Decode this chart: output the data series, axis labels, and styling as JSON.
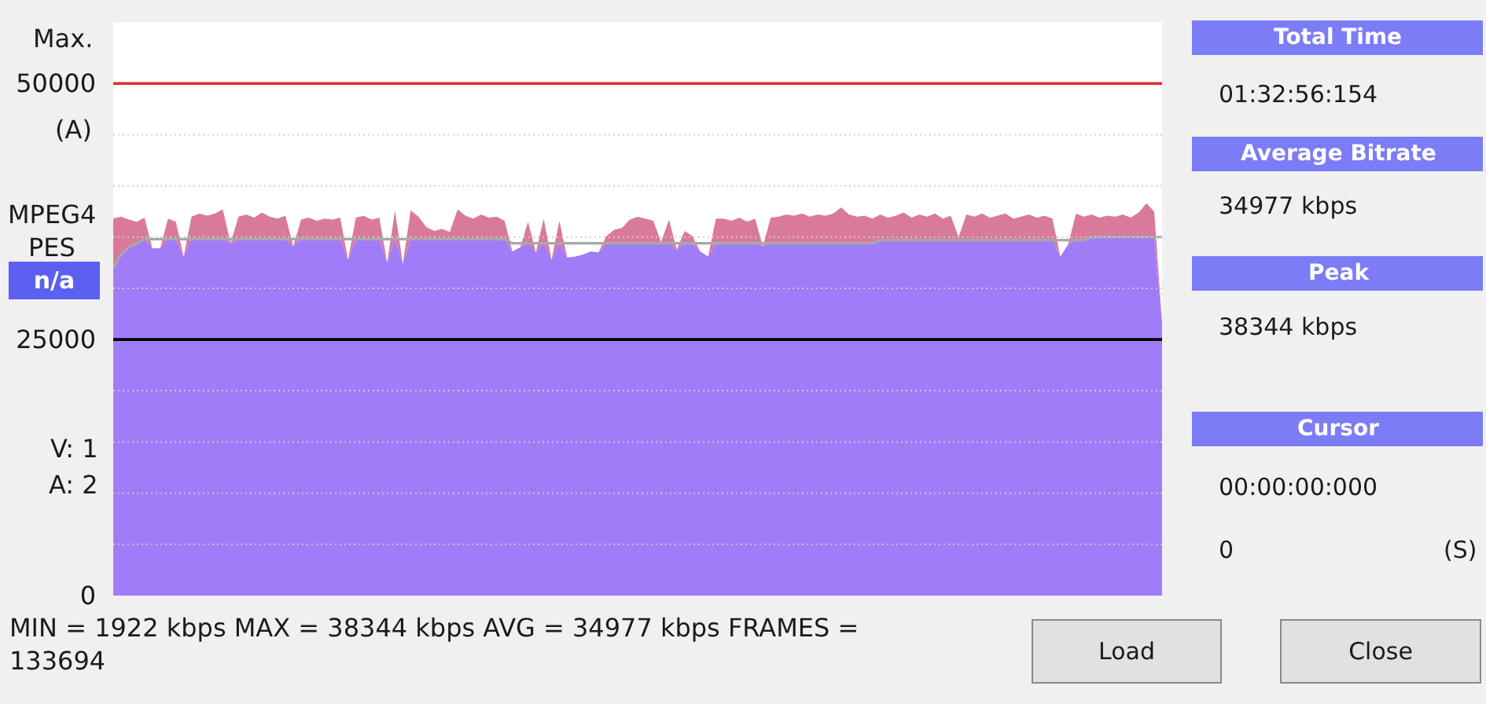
{
  "chart_data": [
    {
      "type": "area",
      "stacked": true,
      "categories": [
        null,
        null,
        null,
        null,
        null,
        null,
        null,
        null,
        null,
        null,
        null,
        null,
        null,
        null,
        null,
        null,
        null,
        null,
        null,
        null,
        null,
        null,
        null,
        null,
        null,
        null,
        null,
        null,
        null,
        null,
        null,
        null,
        null,
        null,
        null,
        null,
        null,
        null,
        null,
        null,
        null,
        null,
        null,
        null,
        null,
        null,
        null,
        null,
        null,
        null,
        null,
        null,
        null,
        null,
        null,
        null,
        null,
        null,
        null,
        null,
        null,
        null,
        null,
        null,
        null,
        null,
        null,
        null,
        null,
        null,
        null,
        null,
        null,
        null,
        null,
        null,
        null,
        null,
        null,
        null,
        null,
        null,
        null,
        null,
        null,
        null,
        null,
        null,
        null,
        null,
        null,
        null,
        null,
        null,
        null,
        null,
        null,
        null,
        null,
        null,
        null,
        null,
        null,
        null,
        null,
        null,
        null,
        null,
        null,
        null,
        null,
        null,
        null,
        null,
        null,
        null,
        null,
        null,
        null,
        null,
        null,
        null,
        null,
        null,
        null,
        null,
        null,
        null,
        null,
        null,
        null,
        null,
        null,
        null,
        null
      ],
      "series": [
        {
          "type": "area",
          "color": "#a07cf8",
          "values": [
            32000,
            33300,
            34000,
            34400,
            34800,
            33900,
            33900,
            34800,
            34800,
            33100,
            34800,
            34800,
            34800,
            34800,
            34800,
            34400,
            34800,
            34800,
            34800,
            34800,
            34800,
            34800,
            34800,
            34100,
            34800,
            34800,
            34800,
            34800,
            34800,
            34800,
            32800,
            34800,
            34800,
            34800,
            34800,
            32500,
            34800,
            32400,
            34800,
            34800,
            34800,
            34800,
            34800,
            34800,
            34800,
            34800,
            34800,
            34800,
            34800,
            34800,
            34800,
            33600,
            34000,
            34400,
            33500,
            34400,
            32800,
            34400,
            33000,
            33100,
            33300,
            33600,
            33500,
            34400,
            34400,
            34400,
            34400,
            34400,
            34400,
            34400,
            34400,
            34400,
            33800,
            34400,
            34400,
            33600,
            33100,
            34400,
            34400,
            34400,
            34400,
            34400,
            34400,
            34100,
            34400,
            34400,
            34400,
            34400,
            34400,
            34400,
            34400,
            34400,
            34400,
            34400,
            34400,
            34400,
            34400,
            34400,
            34700,
            34700,
            34700,
            34700,
            34700,
            34700,
            34700,
            34700,
            34700,
            34700,
            34700,
            34700,
            34700,
            34700,
            34700,
            34700,
            34700,
            34700,
            34700,
            34700,
            34700,
            34700,
            34700,
            33100,
            34300,
            34700,
            34700,
            35000,
            35000,
            35000,
            35000,
            35000,
            35000,
            35000,
            35000,
            35000,
            26700
          ]
        },
        {
          "type": "area",
          "color": "#d97a9c",
          "values": [
            4800,
            3700,
            2700,
            2100,
            2100,
            0,
            0,
            2000,
            1700,
            0,
            2200,
            2500,
            2300,
            2500,
            2900,
            0,
            2200,
            2400,
            2100,
            2600,
            2200,
            2000,
            2300,
            0,
            1900,
            2100,
            1800,
            2000,
            1900,
            2100,
            0,
            2100,
            2300,
            1900,
            2100,
            0,
            2800,
            0,
            2800,
            2200,
            1200,
            800,
            1000,
            700,
            2900,
            2300,
            2000,
            2400,
            2100,
            2200,
            1800,
            0,
            0,
            2100,
            0,
            2400,
            0,
            2200,
            0,
            0,
            0,
            0,
            0,
            700,
            1300,
            1500,
            2300,
            2600,
            2400,
            2200,
            100,
            2300,
            0,
            1200,
            700,
            0,
            0,
            2400,
            2400,
            2200,
            2500,
            2100,
            2400,
            0,
            2500,
            2600,
            2800,
            2700,
            2900,
            2600,
            2800,
            2700,
            2900,
            3500,
            2800,
            2600,
            2700,
            2400,
            2500,
            2200,
            2400,
            2700,
            2200,
            2500,
            2300,
            2600,
            2100,
            2400,
            300,
            2500,
            2300,
            2600,
            2200,
            2400,
            2600,
            2100,
            2300,
            2500,
            2200,
            2400,
            2100,
            0,
            0,
            2600,
            2300,
            2200,
            1900,
            2100,
            2000,
            2200,
            1900,
            2400,
            3300,
            2500,
            0
          ]
        },
        {
          "type": "line",
          "color": "#a8a8a8",
          "values": [
            32000,
            33300,
            34000,
            34400,
            34800,
            34800,
            34800,
            34800,
            34800,
            34800,
            34800,
            34800,
            34800,
            34800,
            34800,
            34800,
            34800,
            34800,
            34800,
            34800,
            34800,
            34800,
            34800,
            34800,
            34800,
            34800,
            34800,
            34800,
            34800,
            34800,
            34800,
            34800,
            34800,
            34800,
            34800,
            34800,
            34800,
            34800,
            34800,
            34800,
            34800,
            34800,
            34800,
            34800,
            34800,
            34800,
            34800,
            34800,
            34800,
            34800,
            34800,
            34400,
            34400,
            34400,
            34400,
            34400,
            34400,
            34400,
            34400,
            34400,
            34400,
            34400,
            34400,
            34400,
            34400,
            34400,
            34400,
            34400,
            34400,
            34400,
            34400,
            34400,
            34400,
            34400,
            34400,
            34400,
            34400,
            34400,
            34400,
            34400,
            34400,
            34400,
            34400,
            34400,
            34400,
            34400,
            34400,
            34400,
            34400,
            34400,
            34400,
            34400,
            34400,
            34400,
            34400,
            34400,
            34400,
            34400,
            34700,
            34700,
            34700,
            34700,
            34700,
            34700,
            34700,
            34700,
            34700,
            34700,
            34700,
            34700,
            34700,
            34700,
            34700,
            34700,
            34700,
            34700,
            34700,
            34700,
            34700,
            34700,
            34700,
            34700,
            34700,
            34700,
            34700,
            35000,
            35000,
            35000,
            35000,
            35000,
            35000,
            35000,
            35000,
            35000,
            35000
          ]
        }
      ],
      "ylim": [
        0,
        56000
      ],
      "yticks": [
        0,
        {
          "value": 5000,
          "label": null
        },
        {
          "value": 10000,
          "label": null
        },
        {
          "value": 15000,
          "label": null
        },
        {
          "value": 20000,
          "label": null
        },
        25000,
        {
          "value": 30000,
          "label": null
        },
        {
          "value": 35000,
          "label": null
        },
        {
          "value": 40000,
          "label": null
        },
        {
          "value": 45000,
          "label": null
        },
        50000
      ],
      "grid": "y",
      "ref_lines": [
        {
          "axis": "y",
          "value": 50000,
          "label": "Max.",
          "color": "#e0302a"
        },
        {
          "axis": "y",
          "value": 25000,
          "color": "#000000"
        }
      ],
      "annotations": [
        "(A)",
        "MIN = 1922 kbps MAX = 38344 kbps AVG = 34977 kbps FRAMES = 133694"
      ]
    },
    {
      "type": "other",
      "annotations": [
        "MPEG4",
        "PES",
        "n/a",
        "V: 1",
        "A: 2",
        "Total Time",
        "01:32:56:154",
        "Average Bitrate",
        "34977 kbps",
        "Peak",
        "38344 kbps",
        "Cursor",
        "00:00:00:000",
        "0",
        "(S)",
        "Load",
        "Close"
      ]
    }
  ]
}
